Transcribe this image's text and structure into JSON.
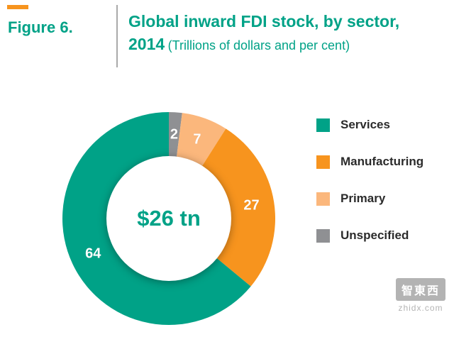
{
  "header": {
    "figure_label": "Figure 6.",
    "title_line1": "Global inward FDI stock, by sector,",
    "title_year": "2014",
    "title_units": "(Trillions of dollars and per cent)"
  },
  "chart_data": {
    "type": "pie",
    "donut": true,
    "title": "Global inward FDI stock, by sector, 2014",
    "subtitle": "Trillions of dollars and per cent",
    "center_label": "$26 tn",
    "total_value_trillions": 26,
    "unit": "per cent",
    "start_angle": "top",
    "direction": "counterclockwise",
    "legend_position": "right",
    "segments": [
      {
        "label": "Services",
        "value": 64,
        "color": "#00A287"
      },
      {
        "label": "Manufacturing",
        "value": 27,
        "color": "#F7941E"
      },
      {
        "label": "Primary",
        "value": 7,
        "color": "#FBB77C"
      },
      {
        "label": "Unspecified",
        "value": 2,
        "color": "#8F9093"
      }
    ]
  },
  "watermark": {
    "logo_text": "智東西",
    "domain": "zhidx.com"
  },
  "colors": {
    "accent_green": "#00A287",
    "accent_orange": "#F7941E",
    "light_orange": "#FBB77C",
    "gray": "#8F9093",
    "divider": "#A9A9A9"
  }
}
